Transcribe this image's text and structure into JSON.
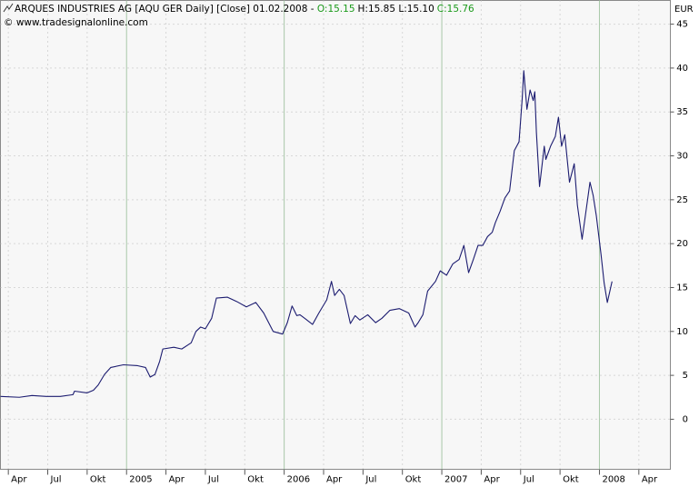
{
  "chart_data": {
    "type": "line",
    "title": "ARQUES INDUSTRIES AG [AQU GER  Daily] [Close] 01.02.2008 -",
    "open": "O:15.15",
    "high_low": "H:15.85 L:15.10",
    "close": "C:15.76",
    "copyright": "© www.tradesignalonline.com",
    "unit": "EUR",
    "color": "#1c1c70",
    "grid": true,
    "x": [
      2004.2,
      2004.32,
      2004.4,
      2004.49,
      2004.58,
      2004.66,
      2004.67,
      2004.75,
      2004.79,
      2004.82,
      2004.86,
      2004.9,
      2004.98,
      2005.07,
      2005.12,
      2005.15,
      2005.18,
      2005.21,
      2005.23,
      2005.3,
      2005.35,
      2005.41,
      2005.44,
      2005.47,
      2005.5,
      2005.54,
      2005.57,
      2005.64,
      2005.7,
      2005.76,
      2005.82,
      2005.87,
      2005.93,
      2005.99,
      2006.02,
      2006.05,
      2006.08,
      2006.1,
      2006.13,
      2006.18,
      2006.22,
      2006.27,
      2006.3,
      2006.32,
      2006.35,
      2006.38,
      2006.42,
      2006.45,
      2006.48,
      2006.53,
      2006.58,
      2006.62,
      2006.67,
      2006.73,
      2006.79,
      2006.83,
      2006.85,
      2006.88,
      2006.91,
      2006.96,
      2006.99,
      2007.03,
      2007.07,
      2007.11,
      2007.14,
      2007.17,
      2007.2,
      2007.23,
      2007.26,
      2007.29,
      2007.32,
      2007.34,
      2007.37,
      2007.4,
      2007.43,
      2007.46,
      2007.49,
      2007.51,
      2007.52,
      2007.54,
      2007.56,
      2007.58,
      2007.59,
      2007.6,
      2007.62,
      2007.65,
      2007.66,
      2007.69,
      2007.72,
      2007.74,
      2007.76,
      2007.78,
      2007.81,
      2007.84,
      2007.86,
      2007.89,
      2007.92,
      2007.94,
      2007.96,
      2007.98,
      2008.01,
      2008.03,
      2008.05,
      2008.08
    ],
    "values": [
      2.6,
      2.5,
      2.7,
      2.6,
      2.6,
      2.8,
      3.2,
      3.0,
      3.3,
      3.9,
      5.1,
      5.9,
      6.2,
      6.1,
      5.9,
      4.8,
      5.1,
      6.6,
      8.0,
      8.2,
      8.0,
      8.7,
      10.0,
      10.5,
      10.3,
      11.5,
      13.8,
      13.9,
      13.4,
      12.8,
      13.3,
      12.1,
      10.0,
      9.7,
      11.0,
      12.9,
      11.8,
      11.9,
      11.5,
      10.8,
      12.1,
      13.6,
      15.7,
      14.1,
      14.8,
      14.1,
      10.9,
      11.8,
      11.3,
      11.9,
      11.0,
      11.5,
      12.4,
      12.6,
      12.1,
      10.5,
      11.0,
      11.9,
      14.6,
      15.7,
      16.9,
      16.4,
      17.7,
      18.2,
      19.8,
      16.7,
      18.2,
      19.8,
      19.8,
      20.8,
      21.3,
      22.4,
      23.7,
      25.2,
      26.0,
      30.6,
      31.6,
      36.5,
      39.7,
      35.3,
      37.5,
      36.3,
      37.3,
      32.7,
      26.5,
      31.1,
      29.6,
      31.1,
      32.2,
      34.4,
      31.1,
      32.4,
      27.0,
      29.1,
      24.4,
      20.5,
      24.4,
      27.0,
      25.5,
      23.2,
      18.8,
      15.5,
      13.3,
      15.7
    ],
    "xlim": [
      2004.2,
      2008.45
    ],
    "xticks": [
      {
        "value": 2004.25,
        "label": "Apr"
      },
      {
        "value": 2004.5,
        "label": "Jul"
      },
      {
        "value": 2004.75,
        "label": "Okt"
      },
      2005,
      {
        "value": 2005.25,
        "label": "Apr"
      },
      {
        "value": 2005.5,
        "label": "Jul"
      },
      {
        "value": 2005.75,
        "label": "Okt"
      },
      2006,
      {
        "value": 2006.25,
        "label": "Apr"
      },
      {
        "value": 2006.5,
        "label": "Jul"
      },
      {
        "value": 2006.75,
        "label": "Okt"
      },
      2007,
      {
        "value": 2007.25,
        "label": "Apr"
      },
      {
        "value": 2007.5,
        "label": "Jul"
      },
      {
        "value": 2007.75,
        "label": "Okt"
      },
      2008,
      {
        "value": 2008.25,
        "label": "Apr"
      }
    ],
    "ylim": [
      -5.7,
      47.7
    ],
    "yticks": [
      0,
      5,
      10,
      15,
      20,
      25,
      30,
      35,
      40,
      45
    ]
  }
}
